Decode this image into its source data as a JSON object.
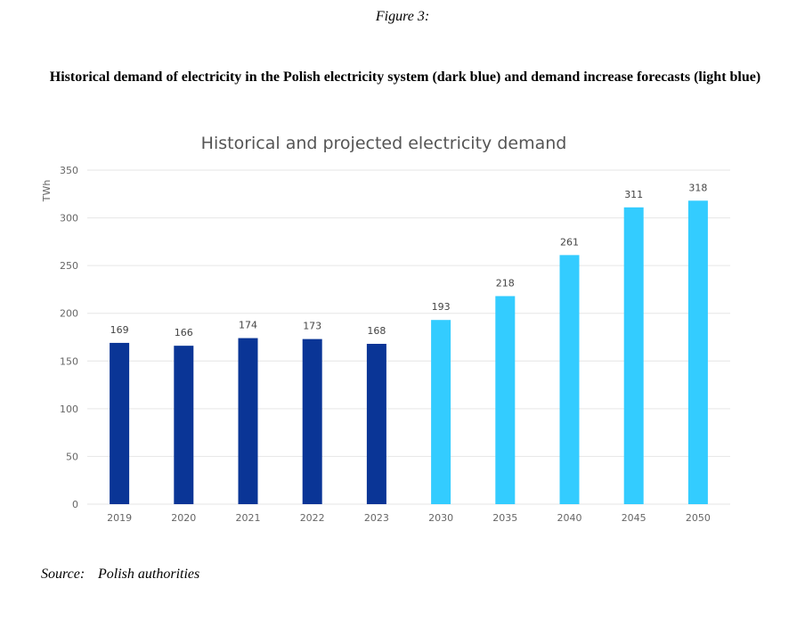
{
  "figure_label": "Figure 3:",
  "title": "Historical demand of electricity in the Polish electricity system (dark blue) and demand increase forecasts (light blue)",
  "source_label": "Source:",
  "source_text": "Polish authorities",
  "colors": {
    "historical": "#0A3596",
    "forecast": "#33CCFF",
    "grid": "#E6E6E6"
  },
  "chart_data": {
    "type": "bar",
    "title": "Historical and projected electricity demand",
    "xlabel": "",
    "ylabel": "TWh",
    "ylim": [
      0,
      350
    ],
    "yticks": [
      0,
      50,
      100,
      150,
      200,
      250,
      300,
      350
    ],
    "grid": true,
    "categories": [
      "2019",
      "2020",
      "2021",
      "2022",
      "2023",
      "2030",
      "2035",
      "2040",
      "2045",
      "2050"
    ],
    "values": [
      169,
      166,
      174,
      173,
      168,
      193,
      218,
      261,
      311,
      318
    ],
    "series_type": [
      "historical",
      "historical",
      "historical",
      "historical",
      "historical",
      "forecast",
      "forecast",
      "forecast",
      "forecast",
      "forecast"
    ],
    "data_labels": [
      "169",
      "166",
      "174",
      "173",
      "168",
      "193",
      "218",
      "261",
      "311",
      "318"
    ]
  }
}
